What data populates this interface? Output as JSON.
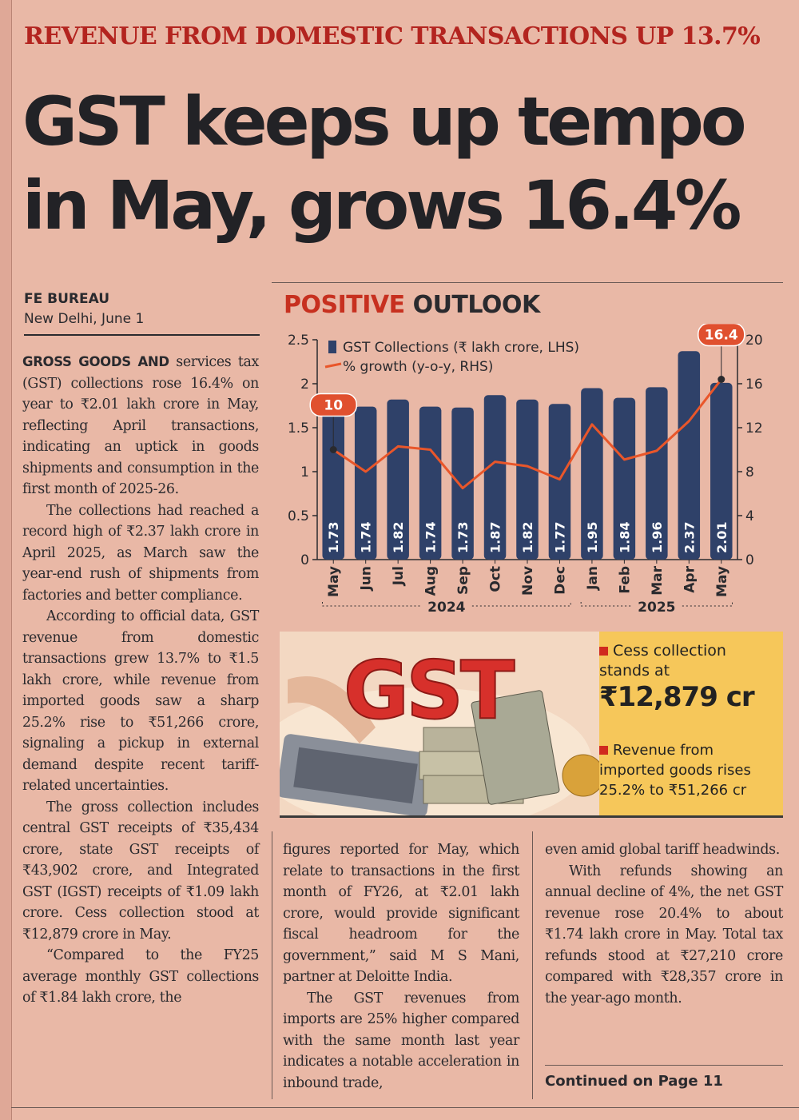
{
  "kicker": "REVENUE FROM DOMESTIC TRANSACTIONS UP 13.7%",
  "headline": {
    "line1": "GST keeps up tempo",
    "line2": "in May, grows 16.4%"
  },
  "byline": {
    "agency": "FE BUREAU",
    "location": "New Delhi, June 1"
  },
  "body": {
    "col1": {
      "lead": "GROSS GOODS AND",
      "p1_rest": " services tax (GST) collections rose 16.4% on year to ₹2.01 lakh crore in May, reflecting April transactions, indicating an uptick in goods shipments and consumption in the first month of 2025-26.",
      "p2": "The collections had reached a record high of ₹2.37 lakh crore in April 2025, as March saw the year-end rush of shipments from factories and better compliance.",
      "p3": "According to official data, GST revenue from domestic transactions grew 13.7% to ₹1.5 lakh crore, while revenue from imported goods saw a sharp 25.2% rise to ₹51,266 crore, signaling a pickup in external demand despite recent tariff-related uncertainties.",
      "p4": "The gross collection includes central GST receipts of ₹35,434 crore, state GST receipts of ₹43,902 crore, and Integrated GST (IGST) receipts of ₹1.09 lakh crore. Cess collection stood at ₹12,879 crore in May.",
      "p5": "“Compared to the FY25 average monthly GST collections of ₹1.84 lakh crore, the"
    },
    "col2": {
      "p1": "figures reported for May, which relate to transactions in the first month of FY26, at ₹2.01 lakh crore, would provide significant fiscal headroom for the government,” said M S Mani, partner at Deloitte India.",
      "p2": "The GST revenues from imports are 25% higher compared with the same month last year indicates a notable acceleration in inbound trade,"
    },
    "col3": {
      "p1": "even amid global tariff headwinds.",
      "p2": "With refunds showing an annual decline of 4%, the net GST revenue rose 20.4% to about ₹1.74 lakh crore in May. Total tax refunds stood at ₹27,210 crore compared with ₹28,357 crore in the year-ago month."
    },
    "continued": "Continued on Page 11"
  },
  "chart_title": {
    "part1": "POSITIVE",
    "part2": "OUTLOOK"
  },
  "chart_data": {
    "type": "bar",
    "categories": [
      "May",
      "Jun",
      "Jul",
      "Aug",
      "Sep",
      "Oct",
      "Nov",
      "Dec",
      "Jan",
      "Feb",
      "Mar",
      "Apr",
      "May"
    ],
    "year_groups": [
      {
        "label": "2024",
        "from": 0,
        "to": 7
      },
      {
        "label": "2025",
        "from": 8,
        "to": 12
      }
    ],
    "series": [
      {
        "name": "GST Collections (₹ lakh crore, LHS)",
        "kind": "bar",
        "axis": "left",
        "values": [
          1.73,
          1.74,
          1.82,
          1.74,
          1.73,
          1.87,
          1.82,
          1.77,
          1.95,
          1.84,
          1.96,
          2.37,
          2.01
        ]
      },
      {
        "name": "% growth (y-o-y, RHS)",
        "kind": "line",
        "axis": "right",
        "values": [
          10,
          8,
          10.3,
          10,
          6.5,
          8.9,
          8.5,
          7.3,
          12.3,
          9.1,
          9.9,
          12.6,
          16.4
        ]
      }
    ],
    "callouts": [
      {
        "index": 0,
        "label": "10"
      },
      {
        "index": 12,
        "label": "16.4"
      }
    ],
    "ylim_left": [
      0,
      2.5
    ],
    "yticks_left": [
      "0",
      "0.5",
      "1",
      "1.5",
      "2",
      "2.5"
    ],
    "ylim_right": [
      0,
      20
    ],
    "yticks_right": [
      "0",
      "4",
      "8",
      "12",
      "16",
      "20"
    ],
    "colors": {
      "bar": "#2f4169",
      "line": "#e9562a",
      "callout": "#e0502f",
      "label": "#ffffff"
    }
  },
  "promo": {
    "art_text": "GST",
    "fact1": {
      "label": "Cess collection stands at",
      "value": "₹12,879 cr"
    },
    "fact2": {
      "label": "Revenue from imported goods rises 25.2% to ₹51,266 cr"
    }
  }
}
